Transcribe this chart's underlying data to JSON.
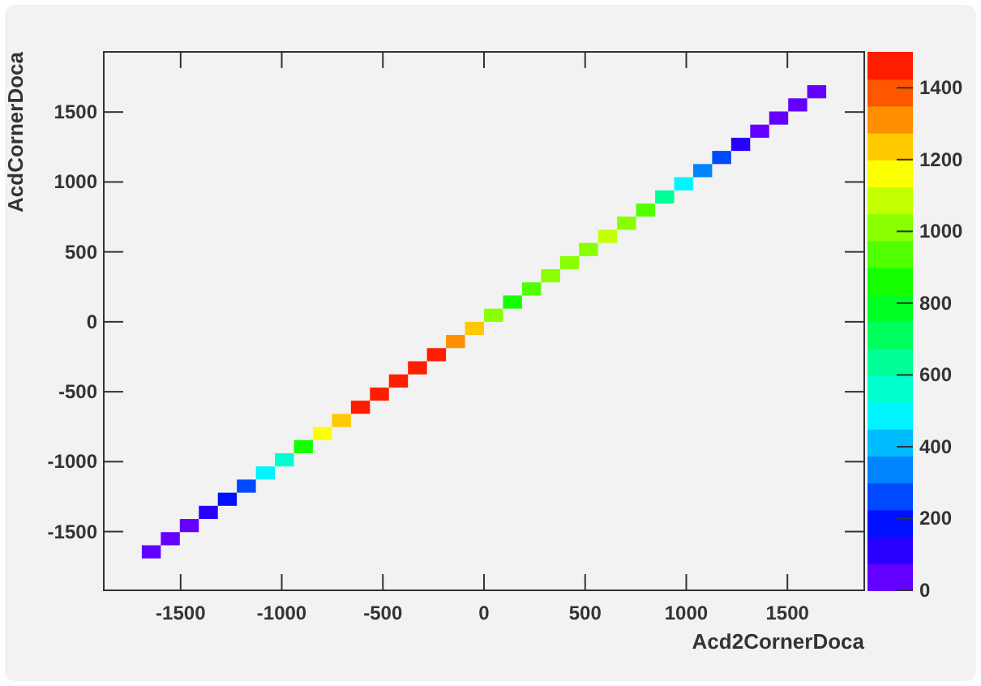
{
  "chart_data": {
    "type": "scatter",
    "xlabel": "Acd2CornerDoca",
    "ylabel": "AcdCornerDoca",
    "marker": "square",
    "grid": false,
    "x": [
      -1645,
      -1551,
      -1457,
      -1363,
      -1269,
      -1175,
      -1081,
      -987,
      -893,
      -799,
      -705,
      -611,
      -517,
      -423,
      -329,
      -235,
      -141,
      -47,
      47,
      141,
      235,
      329,
      423,
      517,
      611,
      705,
      799,
      893,
      987,
      1081,
      1175,
      1269,
      1363,
      1457,
      1551,
      1645
    ],
    "values": [
      -1645,
      -1551,
      -1457,
      -1363,
      -1269,
      -1175,
      -1081,
      -987,
      -893,
      -799,
      -705,
      -611,
      -517,
      -423,
      -329,
      -235,
      -141,
      -47,
      47,
      141,
      235,
      329,
      423,
      517,
      611,
      705,
      799,
      893,
      987,
      1081,
      1175,
      1269,
      1363,
      1457,
      1551,
      1645
    ],
    "cvalues": [
      50,
      50,
      60,
      80,
      150,
      270,
      450,
      580,
      850,
      1130,
      1270,
      1430,
      1450,
      1450,
      1450,
      1430,
      1330,
      1230,
      1030,
      870,
      970,
      1000,
      1030,
      1030,
      1100,
      1030,
      930,
      650,
      470,
      370,
      250,
      130,
      70,
      70,
      70,
      60
    ],
    "xlim": [
      -1880,
      1880
    ],
    "ylim": [
      -1920,
      1930
    ],
    "xticks": [
      -1500,
      -1000,
      -500,
      0,
      500,
      1000,
      1500
    ],
    "yticks": [
      -1500,
      -1000,
      -500,
      0,
      500,
      1000,
      1500
    ],
    "clim": [
      0,
      1500
    ],
    "cticks": [
      0,
      200,
      400,
      600,
      800,
      1000,
      1200,
      1400
    ]
  }
}
